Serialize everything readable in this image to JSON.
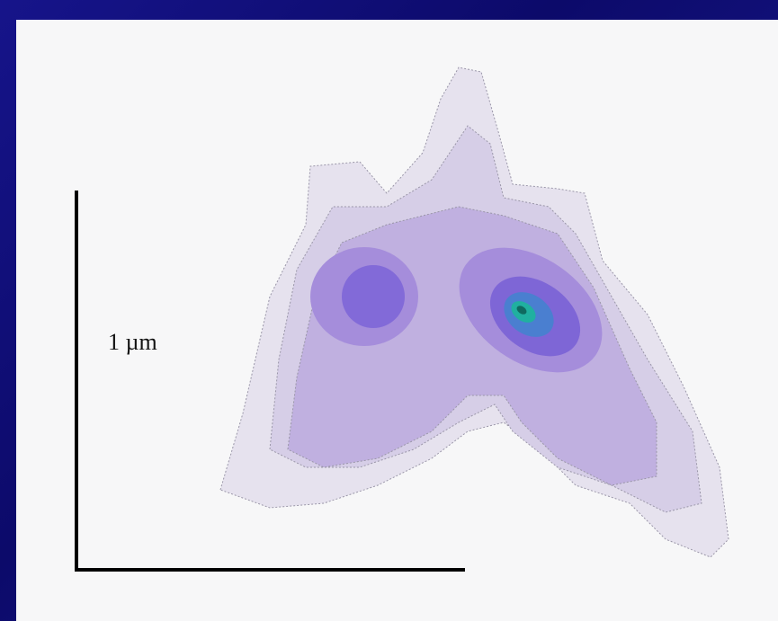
{
  "scale_label": "1 µm"
}
